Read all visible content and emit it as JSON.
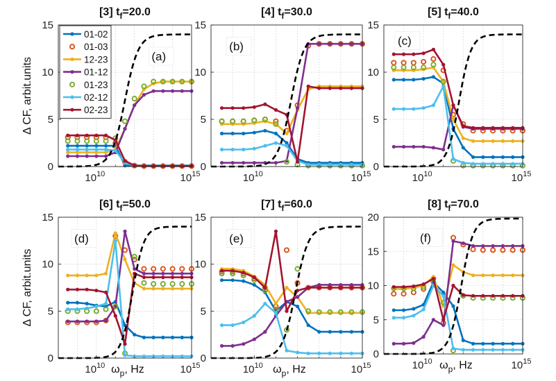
{
  "chart_data": {
    "type": "line",
    "ylabel": "Δ CF, arbit.units",
    "xlabel": "ωp, Hz",
    "xscale": "log",
    "xlim": [
      100000000.0,
      1000000000000000.0
    ],
    "x_tick_labels": [
      "10^10",
      "10^15"
    ],
    "grid": true,
    "legend": {
      "placement": "top-left",
      "panel": "a",
      "entries": [
        {
          "name": "01-02",
          "color": "#0072BD",
          "marker": "filled-line"
        },
        {
          "name": "01-03",
          "color": "#D95319",
          "marker": "open-circle"
        },
        {
          "name": "12-23",
          "color": "#EDB120",
          "marker": "filled-line"
        },
        {
          "name": "01-12",
          "color": "#7E2F8E",
          "marker": "filled-line"
        },
        {
          "name": "01-23",
          "color": "#77AC30",
          "marker": "open-circle"
        },
        {
          "name": "02-12",
          "color": "#4DBEEE",
          "marker": "filled-line"
        },
        {
          "name": "02-23",
          "color": "#A2142F",
          "marker": "filled-line"
        }
      ]
    },
    "dashed_curve_color": "#000000",
    "x_exponents": [
      8.5,
      9,
      9.5,
      10,
      10.5,
      11,
      11.5,
      12,
      12.5,
      13,
      13.5,
      14,
      14.5,
      15
    ],
    "panels": [
      {
        "id": "a",
        "label": "(a)",
        "title_prefix": "[3] t",
        "title_sub": "f",
        "title_value": "=20.0",
        "ylim": [
          0,
          15
        ],
        "y_ticks": [
          "0",
          "5",
          "10",
          "15"
        ],
        "show_xlabel": false,
        "dashed": {
          "low": 0,
          "high": 14,
          "center": 11.5,
          "width": 0.35
        },
        "series": [
          {
            "name": "01-02",
            "values": [
              2.2,
              2.2,
              2.2,
              2.2,
              2.2,
              2.2,
              0.1,
              0.1,
              0.1,
              0.1,
              0.1,
              0.1,
              0.1,
              0.1
            ]
          },
          {
            "name": "01-03",
            "values": [
              3.1,
              3.1,
              3.1,
              3.1,
              3.1,
              2.5,
              0.5,
              0.1,
              0.05,
              0.05,
              0.05,
              0.05,
              0.05,
              0.05
            ]
          },
          {
            "name": "12-23",
            "values": [
              1.5,
              1.5,
              1.5,
              1.5,
              1.5,
              1.8,
              4.0,
              6.5,
              8.2,
              8.8,
              9.0,
              9.0,
              9.0,
              9.0
            ]
          },
          {
            "name": "01-12",
            "values": [
              1.1,
              1.1,
              1.1,
              1.1,
              1.1,
              1.5,
              4.0,
              6.5,
              7.6,
              8.0,
              8.0,
              8.0,
              8.0,
              8.0
            ]
          },
          {
            "name": "01-23",
            "values": [
              2.7,
              2.7,
              2.7,
              2.7,
              2.7,
              3.0,
              4.8,
              7.2,
              8.5,
              9.0,
              9.0,
              9.0,
              9.0,
              9.0
            ]
          },
          {
            "name": "02-12",
            "values": [
              1.8,
              1.8,
              1.8,
              1.8,
              1.8,
              1.7,
              0.4,
              0.1,
              0.05,
              0.05,
              0.05,
              0.05,
              0.05,
              0.05
            ]
          },
          {
            "name": "02-23",
            "values": [
              3.3,
              3.3,
              3.3,
              3.3,
              3.3,
              2.8,
              0.6,
              0.1,
              0.05,
              0.05,
              0.05,
              0.05,
              0.05,
              0.05
            ]
          }
        ]
      },
      {
        "id": "b",
        "label": "(b)",
        "title_prefix": "[4] t",
        "title_sub": "f",
        "title_value": "=30.0",
        "ylim": [
          0,
          15
        ],
        "y_ticks": [
          "0",
          "5",
          "10",
          "15"
        ],
        "show_xlabel": false,
        "dashed": {
          "low": 0,
          "high": 14,
          "center": 11.7,
          "width": 0.3
        },
        "series": [
          {
            "name": "01-02",
            "values": [
              3.5,
              3.5,
              3.5,
              3.6,
              3.8,
              3.5,
              2.5,
              0.8,
              0.4,
              0.4,
              0.4,
              0.4,
              0.4,
              0.4
            ]
          },
          {
            "name": "01-03",
            "values": [
              4.8,
              4.8,
              4.8,
              4.9,
              5.0,
              4.8,
              3.8,
              6.5,
              12.8,
              13.0,
              13.0,
              13.0,
              13.0,
              13.0
            ]
          },
          {
            "name": "12-23",
            "values": [
              4.5,
              4.5,
              4.5,
              4.6,
              4.8,
              4.5,
              3.5,
              6.0,
              8.2,
              8.5,
              8.5,
              8.5,
              8.5,
              8.5
            ]
          },
          {
            "name": "01-12",
            "values": [
              0.4,
              0.4,
              0.4,
              0.4,
              0.4,
              0.4,
              0.6,
              6.2,
              13.0,
              13.0,
              13.0,
              13.0,
              13.0,
              13.0
            ]
          },
          {
            "name": "01-23",
            "values": [
              4.8,
              4.8,
              4.8,
              4.9,
              5.0,
              4.5,
              0.5,
              0.2,
              0.1,
              0.1,
              0.1,
              0.1,
              0.1,
              0.1
            ]
          },
          {
            "name": "02-12",
            "values": [
              1.8,
              1.8,
              1.8,
              1.9,
              2.2,
              2.5,
              2.2,
              0.6,
              0.2,
              0.2,
              0.2,
              0.2,
              0.2,
              0.2
            ]
          },
          {
            "name": "02-23",
            "values": [
              6.2,
              6.2,
              6.2,
              6.3,
              6.6,
              6.0,
              5.5,
              0.5,
              8.5,
              8.3,
              8.3,
              8.3,
              8.3,
              8.3
            ]
          }
        ]
      },
      {
        "id": "c",
        "label": "(c)",
        "title_prefix": "[5] t",
        "title_sub": "f",
        "title_value": "=40.0",
        "ylim": [
          0,
          15
        ],
        "y_ticks": [
          "0",
          "5",
          "10",
          "15"
        ],
        "show_xlabel": false,
        "dashed": {
          "low": 0,
          "high": 14,
          "center": 11.8,
          "width": 0.3
        },
        "series": [
          {
            "name": "01-02",
            "values": [
              9.2,
              9.2,
              9.2,
              9.3,
              9.5,
              8.8,
              4.0,
              2.0,
              1.0,
              1.0,
              1.0,
              1.0,
              1.0,
              1.0
            ]
          },
          {
            "name": "01-03",
            "values": [
              11.0,
              11.0,
              11.0,
              11.1,
              11.4,
              10.2,
              5.5,
              4.5,
              3.8,
              3.8,
              3.8,
              3.8,
              3.8,
              3.8
            ]
          },
          {
            "name": "12-23",
            "values": [
              10.2,
              10.2,
              10.2,
              10.3,
              10.5,
              9.0,
              5.0,
              3.0,
              2.7,
              2.7,
              2.7,
              2.7,
              2.7,
              2.7
            ]
          },
          {
            "name": "01-12",
            "values": [
              2.1,
              2.1,
              2.1,
              2.1,
              2.0,
              1.8,
              6.5,
              4.2,
              4.0,
              4.0,
              4.0,
              4.0,
              4.0,
              4.0
            ]
          },
          {
            "name": "01-23",
            "values": [
              10.5,
              10.5,
              10.5,
              10.5,
              10.8,
              9.0,
              0.6,
              0.1,
              0.1,
              0.1,
              0.1,
              0.1,
              0.1,
              0.1
            ]
          },
          {
            "name": "02-12",
            "values": [
              6.1,
              6.1,
              6.1,
              6.2,
              6.5,
              8.5,
              0.8,
              0.4,
              0.3,
              0.3,
              0.3,
              0.3,
              0.3,
              0.3
            ]
          },
          {
            "name": "02-23",
            "values": [
              11.9,
              11.9,
              11.9,
              12.0,
              12.4,
              10.8,
              6.5,
              4.3,
              4.1,
              4.1,
              4.1,
              4.1,
              4.1,
              4.1
            ]
          }
        ]
      },
      {
        "id": "d",
        "label": "(d)",
        "title_prefix": "[6] t",
        "title_sub": "f",
        "title_value": "=50.0",
        "ylim": [
          0,
          15
        ],
        "y_ticks": [
          "0",
          "5",
          "10",
          "15"
        ],
        "show_xlabel": true,
        "dashed": {
          "low": 0,
          "high": 14,
          "center": 11.9,
          "width": 0.3
        },
        "series": [
          {
            "name": "01-02",
            "values": [
              5.9,
              5.9,
              5.8,
              5.6,
              5.5,
              6.0,
              3.5,
              2.5,
              2.2,
              2.2,
              2.2,
              2.2,
              2.2,
              2.2
            ]
          },
          {
            "name": "01-03",
            "values": [
              3.8,
              3.8,
              3.8,
              3.8,
              4.0,
              13.0,
              11.5,
              10.5,
              9.5,
              9.5,
              9.5,
              9.5,
              9.5,
              9.5
            ]
          },
          {
            "name": "12-23",
            "values": [
              8.8,
              8.8,
              8.8,
              8.8,
              9.0,
              13.3,
              10.5,
              8.0,
              7.4,
              7.4,
              7.4,
              7.4,
              7.4,
              7.4
            ]
          },
          {
            "name": "01-12",
            "values": [
              3.9,
              3.9,
              3.9,
              3.9,
              4.0,
              5.5,
              13.5,
              9.5,
              9.0,
              9.0,
              9.0,
              9.0,
              9.0,
              9.0
            ]
          },
          {
            "name": "01-23",
            "values": [
              5.0,
              5.0,
              5.0,
              5.0,
              5.2,
              5.5,
              0.5,
              10.8,
              8.0,
              7.9,
              7.9,
              7.9,
              7.9,
              7.9
            ]
          },
          {
            "name": "02-12",
            "values": [
              5.2,
              5.2,
              5.3,
              5.5,
              5.8,
              12.5,
              0.3,
              0.2,
              0.2,
              0.2,
              0.2,
              0.2,
              0.2,
              0.2
            ]
          },
          {
            "name": "02-23",
            "values": [
              7.3,
              7.3,
              7.3,
              7.2,
              7.0,
              4.5,
              1.5,
              9.0,
              8.6,
              8.6,
              8.6,
              8.6,
              8.6,
              8.6
            ]
          }
        ]
      },
      {
        "id": "e",
        "label": "(e)",
        "title_prefix": "[7] t",
        "title_sub": "f",
        "title_value": "=60.0",
        "ylim": [
          0,
          15
        ],
        "y_ticks": [
          "0",
          "5",
          "10",
          "15"
        ],
        "show_xlabel": true,
        "dashed": {
          "low": 0,
          "high": 14,
          "center": 11.9,
          "width": 0.3
        },
        "series": [
          {
            "name": "01-02",
            "values": [
              8.3,
              8.3,
              8.2,
              7.8,
              7.0,
              5.0,
              6.0,
              5.5,
              3.5,
              2.8,
              2.8,
              2.8,
              2.8,
              2.8
            ]
          },
          {
            "name": "01-03",
            "values": [
              9.2,
              9.2,
              9.0,
              8.5,
              7.5,
              5.5,
              11.5,
              8.0,
              7.5,
              7.5,
              7.5,
              7.5,
              7.5,
              7.5
            ]
          },
          {
            "name": "12-23",
            "values": [
              9.5,
              9.5,
              9.3,
              8.7,
              7.8,
              5.8,
              7.5,
              6.5,
              4.8,
              4.8,
              4.8,
              4.8,
              4.8,
              4.8
            ]
          },
          {
            "name": "01-12",
            "values": [
              1.3,
              1.3,
              1.5,
              2.0,
              2.8,
              4.5,
              6.0,
              6.5,
              7.5,
              7.8,
              7.8,
              7.8,
              7.8,
              7.8
            ]
          },
          {
            "name": "01-23",
            "values": [
              9.0,
              9.0,
              8.8,
              8.3,
              7.2,
              5.2,
              3.0,
              9.5,
              5.0,
              4.9,
              4.9,
              4.9,
              4.9,
              4.9
            ]
          },
          {
            "name": "02-12",
            "values": [
              3.5,
              3.5,
              3.8,
              4.5,
              5.8,
              4.8,
              0.8,
              0.6,
              0.5,
              0.5,
              0.5,
              0.5,
              0.5,
              0.5
            ]
          },
          {
            "name": "02-23",
            "values": [
              9.3,
              9.3,
              9.1,
              8.6,
              7.5,
              13.5,
              5.0,
              7.2,
              7.5,
              7.5,
              7.5,
              7.5,
              7.5,
              7.5
            ]
          }
        ]
      },
      {
        "id": "f",
        "label": "(f)",
        "title_prefix": "[8] t",
        "title_sub": "f",
        "title_value": "=70.0",
        "ylim": [
          0,
          20
        ],
        "y_ticks": [
          "0",
          "5",
          "10",
          "15",
          "20"
        ],
        "show_xlabel": true,
        "dashed": {
          "low": 0,
          "high": 19.8,
          "center": 11.9,
          "width": 0.3
        },
        "series": [
          {
            "name": "01-02",
            "values": [
              6.4,
              6.4,
              6.6,
              7.2,
              10.5,
              9.0,
              7.0,
              2.0,
              1.5,
              1.5,
              1.5,
              1.5,
              1.5,
              1.5
            ]
          },
          {
            "name": "01-03",
            "values": [
              8.8,
              8.8,
              9.0,
              9.5,
              11.0,
              4.5,
              17.0,
              16.0,
              15.3,
              15.2,
              15.2,
              15.2,
              15.2,
              15.2
            ]
          },
          {
            "name": "12-23",
            "values": [
              9.5,
              9.5,
              9.7,
              10.0,
              11.3,
              7.0,
              13.0,
              12.0,
              11.5,
              11.5,
              11.5,
              11.5,
              11.5,
              11.5
            ]
          },
          {
            "name": "01-12",
            "values": [
              1.5,
              1.5,
              1.6,
              2.5,
              5.0,
              4.2,
              16.5,
              16.2,
              15.8,
              15.8,
              15.8,
              15.8,
              15.8,
              15.8
            ]
          },
          {
            "name": "01-23",
            "values": [
              9.6,
              9.6,
              9.6,
              9.8,
              10.5,
              7.5,
              0.5,
              8.5,
              8.2,
              8.2,
              8.2,
              8.2,
              8.2,
              8.2
            ]
          },
          {
            "name": "02-12",
            "values": [
              5.3,
              5.3,
              5.6,
              6.5,
              10.0,
              8.5,
              0.8,
              0.6,
              0.6,
              0.6,
              0.6,
              0.6,
              0.6,
              0.6
            ]
          },
          {
            "name": "02-23",
            "values": [
              9.8,
              9.8,
              9.9,
              10.2,
              11.0,
              5.0,
              10.0,
              8.6,
              8.5,
              8.5,
              8.5,
              8.5,
              8.5,
              8.5
            ]
          }
        ]
      }
    ]
  }
}
